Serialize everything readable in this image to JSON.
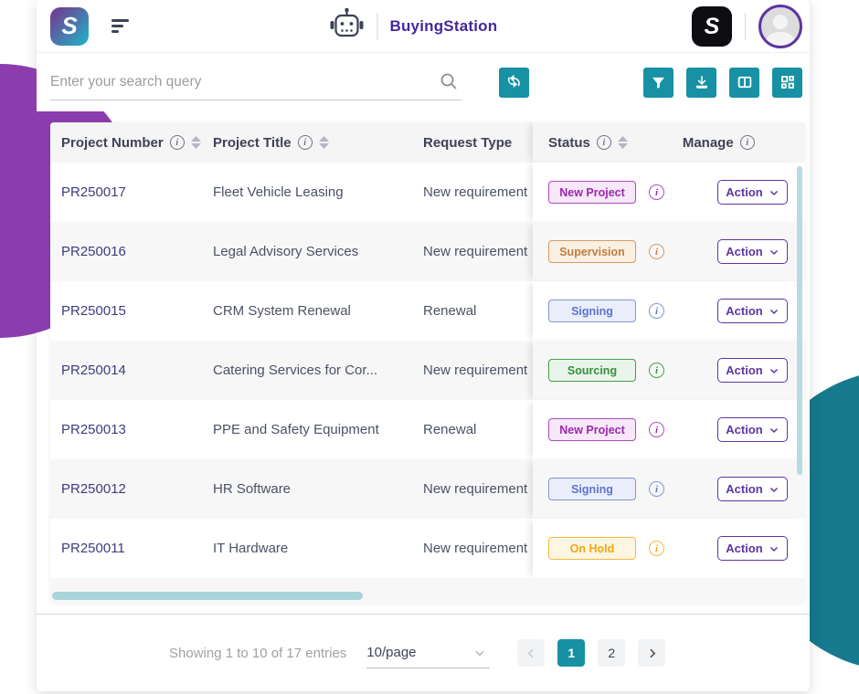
{
  "header": {
    "brand_glyph": "S",
    "app_title": "BuyingStation",
    "right_logo_glyph": "S"
  },
  "toolbar": {
    "search_placeholder": "Enter your search query"
  },
  "table": {
    "columns": {
      "project_number": "Project Number",
      "project_title": "Project Title",
      "request_type": "Request Type",
      "status": "Status",
      "manage": "Manage"
    },
    "action_label": "Action",
    "info_glyph": "i",
    "rows": [
      {
        "number": "PR250017",
        "title": "Fleet Vehicle Leasing",
        "request_type": "New requirement",
        "status": "New Project",
        "status_color": "purple"
      },
      {
        "number": "PR250016",
        "title": "Legal Advisory Services",
        "request_type": "New requirement",
        "status": "Supervision",
        "status_color": "orange"
      },
      {
        "number": "PR250015",
        "title": "CRM System Renewal",
        "request_type": "Renewal",
        "status": "Signing",
        "status_color": "blue"
      },
      {
        "number": "PR250014",
        "title": "Catering Services for Cor...",
        "request_type": "New requirement",
        "status": "Sourcing",
        "status_color": "green"
      },
      {
        "number": "PR250013",
        "title": "PPE and Safety Equipment",
        "request_type": "Renewal",
        "status": "New Project",
        "status_color": "purple"
      },
      {
        "number": "PR250012",
        "title": "HR Software",
        "request_type": "New requirement",
        "status": "Signing",
        "status_color": "blue"
      },
      {
        "number": "PR250011",
        "title": "IT Hardware",
        "request_type": "New requirement",
        "status": "On Hold",
        "status_color": "yellow"
      }
    ]
  },
  "status_styles": {
    "purple": {
      "bg": "#f7e7f8",
      "border": "#ae4cbe",
      "text": "#9c27b0"
    },
    "orange": {
      "bg": "#f9efe3",
      "border": "#d39c64",
      "text": "#c07f42"
    },
    "blue": {
      "bg": "#eaeefa",
      "border": "#8495d7",
      "text": "#5f74c9"
    },
    "green": {
      "bg": "#e9f5ea",
      "border": "#43a047",
      "text": "#388e3c"
    },
    "yellow": {
      "bg": "#fdf6e2",
      "border": "#f5b940",
      "text": "#eda712"
    }
  },
  "pagination": {
    "summary": "Showing 1 to 10 of 17 entries",
    "page_size": "10/page",
    "pages": [
      "1",
      "2"
    ],
    "active_page": "1"
  },
  "colors": {
    "accent_teal": "#1791a3",
    "purple_circle": "#8b3dae",
    "teal_circle": "#16798d",
    "brand_purple": "#4527a0",
    "action_purple": "#5e35a1"
  }
}
